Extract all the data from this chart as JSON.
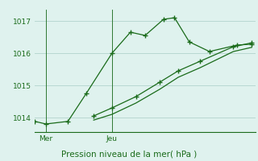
{
  "title": "Pression niveau de la mer( hPa )",
  "bg_color": "#dff2ee",
  "line_color": "#1a6b1a",
  "grid_color": "#b8d8d2",
  "yticks": [
    1014,
    1015,
    1016,
    1017
  ],
  "ylim": [
    1013.55,
    1017.35
  ],
  "xlim": [
    0,
    12
  ],
  "xtick_positions": [
    0.6,
    4.2
  ],
  "xtick_labels": [
    "Mer",
    "Jeu"
  ],
  "vline_positions": [
    0.6,
    4.2
  ],
  "line1_x": [
    0.0,
    0.6,
    1.8,
    2.8,
    4.2,
    5.2,
    6.0,
    7.0,
    7.6,
    8.4,
    9.5,
    11.0,
    11.8
  ],
  "line1_y": [
    1013.88,
    1013.8,
    1013.88,
    1014.75,
    1016.0,
    1016.65,
    1016.55,
    1017.05,
    1017.1,
    1016.35,
    1016.05,
    1016.25,
    1016.28
  ],
  "line2_x": [
    3.2,
    4.2,
    5.5,
    6.8,
    7.8,
    9.0,
    10.8,
    11.8
  ],
  "line2_y": [
    1014.05,
    1014.3,
    1014.65,
    1015.1,
    1015.45,
    1015.75,
    1016.2,
    1016.32
  ],
  "line3_x": [
    3.2,
    4.2,
    5.5,
    6.8,
    7.8,
    9.0,
    10.8,
    11.8
  ],
  "line3_y": [
    1013.92,
    1014.1,
    1014.45,
    1014.88,
    1015.25,
    1015.55,
    1016.05,
    1016.18
  ]
}
